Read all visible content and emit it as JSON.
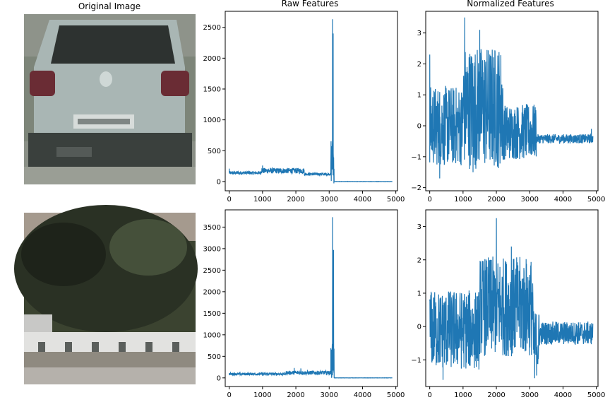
{
  "titles": {
    "original": "Original Image",
    "raw": "Raw Features",
    "normalized": "Normalized Features"
  },
  "colors": {
    "line": "#1f77b4",
    "axes": "#000000",
    "car_body": "#a9b6b4",
    "car_window": "#2d3230",
    "tail_light": "#6a2c34",
    "bumper": "#3a403d",
    "road": "#8a8f86",
    "tree_dark": "#1e231a",
    "tree_mid": "#3b4330",
    "sky": "#a59a8e",
    "wall": "#e2e2e0",
    "wall_shadow": "#5b5f5c"
  },
  "icons": {
    "row1_image": "car-rear-image",
    "row2_image": "tree-wall-image"
  },
  "chart_data": [
    {
      "type": "line",
      "row": 1,
      "panel": "raw",
      "title": "Raw Features",
      "xlim": [
        -120,
        5050
      ],
      "ylim": [
        -150,
        2760
      ],
      "xticks": [
        0,
        1000,
        2000,
        3000,
        4000,
        5000
      ],
      "yticks": [
        0,
        500,
        1000,
        1500,
        2000,
        2500
      ],
      "series": [
        {
          "segments": [
            {
              "x0": 0,
              "x1": 950,
              "base": 140,
              "amp": 28,
              "peaks": [
                [
                  0,
                  210
                ]
              ]
            },
            {
              "x0": 950,
              "x1": 2250,
              "base": 175,
              "amp": 45,
              "peaks": [
                [
                  1000,
                  260
                ]
              ]
            },
            {
              "x0": 2250,
              "x1": 3050,
              "base": 120,
              "amp": 20,
              "peaks": []
            },
            {
              "x0": 3050,
              "x1": 3150,
              "base": 350,
              "amp": 400,
              "peaks": [
                [
                  3100,
                  2630
                ],
                [
                  3120,
                  2400
                ]
              ]
            },
            {
              "x0": 3150,
              "x1": 4900,
              "base": 0,
              "amp": 2,
              "peaks": []
            }
          ]
        }
      ]
    },
    {
      "type": "line",
      "row": 1,
      "panel": "normalized",
      "title": "Normalized Features",
      "xlim": [
        -120,
        5050
      ],
      "ylim": [
        -2.1,
        3.7
      ],
      "xticks": [
        0,
        1000,
        2000,
        3000,
        4000,
        5000
      ],
      "yticks": [
        -2,
        -1,
        0,
        1,
        2,
        3
      ],
      "series": [
        {
          "segments": [
            {
              "x0": 0,
              "x1": 1000,
              "base": 0.0,
              "amp": 1.3,
              "peaks": [
                [
                  0,
                  2.3
                ],
                [
                  300,
                  -1.7
                ]
              ]
            },
            {
              "x0": 1000,
              "x1": 2200,
              "base": 0.6,
              "amp": 2.0,
              "peaks": [
                [
                  1050,
                  3.5
                ],
                [
                  1500,
                  3.1
                ],
                [
                  1300,
                  -1.5
                ]
              ]
            },
            {
              "x0": 2200,
              "x1": 3200,
              "base": -0.2,
              "amp": 0.9,
              "peaks": [
                [
                  2900,
                  0.7
                ]
              ]
            },
            {
              "x0": 3200,
              "x1": 4900,
              "base": -0.42,
              "amp": 0.15,
              "peaks": [
                [
                  4850,
                  -0.1
                ]
              ]
            }
          ]
        }
      ]
    },
    {
      "type": "line",
      "row": 2,
      "panel": "raw",
      "title": "",
      "xlim": [
        -120,
        5050
      ],
      "ylim": [
        -200,
        3900
      ],
      "xticks": [
        0,
        1000,
        2000,
        3000,
        4000,
        5000
      ],
      "yticks": [
        0,
        500,
        1000,
        1500,
        2000,
        2500,
        3000,
        3500
      ],
      "series": [
        {
          "segments": [
            {
              "x0": 0,
              "x1": 1700,
              "base": 90,
              "amp": 30,
              "peaks": []
            },
            {
              "x0": 1700,
              "x1": 3050,
              "base": 120,
              "amp": 45,
              "peaks": [
                [
                  1950,
                  230
                ],
                [
                  2150,
                  220
                ]
              ]
            },
            {
              "x0": 3050,
              "x1": 3150,
              "base": 400,
              "amp": 400,
              "peaks": [
                [
                  3100,
                  3730
                ],
                [
                  3130,
                  2970
                ]
              ]
            },
            {
              "x0": 3150,
              "x1": 4900,
              "base": 0,
              "amp": 2,
              "peaks": []
            }
          ]
        }
      ]
    },
    {
      "type": "line",
      "row": 2,
      "panel": "normalized",
      "title": "",
      "xlim": [
        -120,
        5050
      ],
      "ylim": [
        -1.8,
        3.5
      ],
      "xticks": [
        0,
        1000,
        2000,
        3000,
        4000,
        5000
      ],
      "yticks": [
        -1,
        0,
        1,
        2,
        3
      ],
      "series": [
        {
          "segments": [
            {
              "x0": 0,
              "x1": 1500,
              "base": -0.1,
              "amp": 1.2,
              "peaks": [
                [
                  50,
                  1.0
                ],
                [
                  400,
                  -1.6
                ]
              ]
            },
            {
              "x0": 1500,
              "x1": 3100,
              "base": 0.6,
              "amp": 1.5,
              "peaks": [
                [
                  2000,
                  3.25
                ],
                [
                  1850,
                  2.0
                ],
                [
                  2450,
                  2.4
                ]
              ]
            },
            {
              "x0": 3100,
              "x1": 3300,
              "base": -0.5,
              "amp": 1.0,
              "peaks": [
                [
                  3150,
                  -1.55
                ]
              ]
            },
            {
              "x0": 3300,
              "x1": 4900,
              "base": -0.2,
              "amp": 0.35,
              "peaks": []
            }
          ]
        }
      ]
    }
  ]
}
